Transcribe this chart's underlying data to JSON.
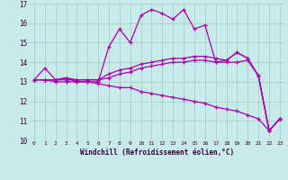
{
  "xlabel": "Windchill (Refroidissement éolien,°C)",
  "background_color": "#c8eaea",
  "grid_color": "#a0ccbb",
  "line_color": "#aa00aa",
  "xlim": [
    -0.5,
    23.5
  ],
  "ylim": [
    10,
    17
  ],
  "xticks": [
    0,
    1,
    2,
    3,
    4,
    5,
    6,
    7,
    8,
    9,
    10,
    11,
    12,
    13,
    14,
    15,
    16,
    17,
    18,
    19,
    20,
    21,
    22,
    23
  ],
  "yticks": [
    10,
    11,
    12,
    13,
    14,
    15,
    16,
    17
  ],
  "series": [
    [
      13.1,
      13.7,
      13.1,
      13.2,
      13.0,
      13.0,
      13.0,
      14.8,
      15.7,
      15.0,
      16.4,
      16.7,
      16.5,
      16.2,
      16.7,
      15.7,
      15.9,
      14.0,
      14.1,
      14.5,
      14.2,
      13.3,
      10.5,
      11.1
    ],
    [
      13.1,
      13.1,
      13.1,
      13.2,
      13.1,
      13.1,
      13.1,
      13.4,
      13.6,
      13.7,
      13.9,
      14.0,
      14.1,
      14.2,
      14.2,
      14.3,
      14.3,
      14.2,
      14.1,
      14.5,
      14.2,
      13.3,
      10.5,
      11.1
    ],
    [
      13.1,
      13.1,
      13.1,
      13.1,
      13.1,
      13.1,
      13.1,
      13.2,
      13.4,
      13.5,
      13.7,
      13.8,
      13.9,
      14.0,
      14.0,
      14.1,
      14.1,
      14.0,
      14.0,
      14.0,
      14.1,
      13.3,
      10.5,
      11.1
    ],
    [
      13.1,
      13.1,
      13.0,
      13.0,
      13.0,
      13.0,
      12.9,
      12.8,
      12.7,
      12.7,
      12.5,
      12.4,
      12.3,
      12.2,
      12.1,
      12.0,
      11.9,
      11.7,
      11.6,
      11.5,
      11.3,
      11.1,
      10.5,
      11.1
    ]
  ]
}
